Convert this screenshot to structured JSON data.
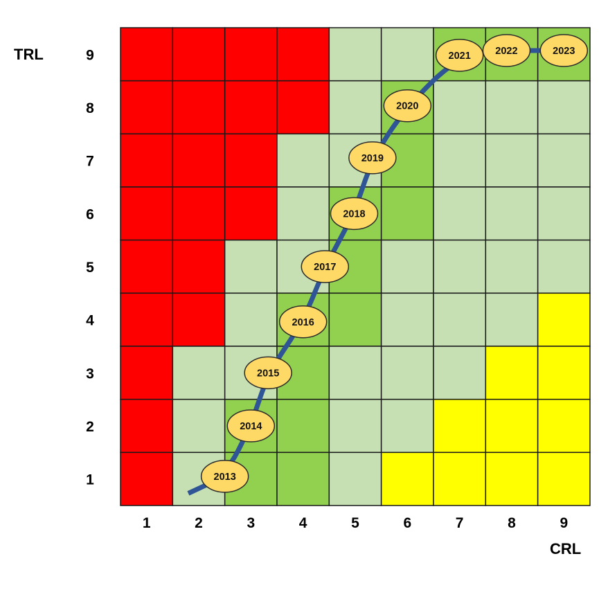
{
  "chart_data": {
    "type": "heatmap",
    "xlabel": "CRL",
    "ylabel": "TRL",
    "x_ticks": [
      "1",
      "2",
      "3",
      "4",
      "5",
      "6",
      "7",
      "8",
      "9"
    ],
    "y_ticks": [
      "1",
      "2",
      "3",
      "4",
      "5",
      "6",
      "7",
      "8",
      "9"
    ],
    "colors": {
      "R": "#ff0000",
      "L": "#c6e0b4",
      "G": "#92d050",
      "Y": "#ffff00",
      "path": "#2f5597",
      "marker": "#ffd966"
    },
    "grid_rows_top_to_bottom": [
      {
        "trl": 9,
        "cells": [
          "R",
          "R",
          "R",
          "R",
          "L",
          "L",
          "G",
          "G",
          "G"
        ]
      },
      {
        "trl": 8,
        "cells": [
          "R",
          "R",
          "R",
          "R",
          "L",
          "G",
          "L",
          "L",
          "L"
        ]
      },
      {
        "trl": 7,
        "cells": [
          "R",
          "R",
          "R",
          "L",
          "L",
          "G",
          "L",
          "L",
          "L"
        ]
      },
      {
        "trl": 6,
        "cells": [
          "R",
          "R",
          "R",
          "L",
          "G",
          "G",
          "L",
          "L",
          "L"
        ]
      },
      {
        "trl": 5,
        "cells": [
          "R",
          "R",
          "L",
          "L",
          "G",
          "L",
          "L",
          "L",
          "L"
        ]
      },
      {
        "trl": 4,
        "cells": [
          "R",
          "R",
          "L",
          "G",
          "G",
          "L",
          "L",
          "L",
          "Y"
        ]
      },
      {
        "trl": 3,
        "cells": [
          "R",
          "L",
          "L",
          "G",
          "L",
          "L",
          "L",
          "Y",
          "Y"
        ]
      },
      {
        "trl": 2,
        "cells": [
          "R",
          "L",
          "G",
          "G",
          "L",
          "L",
          "Y",
          "Y",
          "Y"
        ]
      },
      {
        "trl": 1,
        "cells": [
          "R",
          "L",
          "G",
          "G",
          "L",
          "Y",
          "Y",
          "Y",
          "Y"
        ]
      }
    ],
    "path_start": {
      "crl": 1.8,
      "trl": 0.73
    },
    "milestones": [
      {
        "label": "2013",
        "crl": 2.5,
        "trl": 1.05
      },
      {
        "label": "2014",
        "crl": 3.0,
        "trl": 2.0
      },
      {
        "label": "2015",
        "crl": 3.33,
        "trl": 3.0
      },
      {
        "label": "2016",
        "crl": 4.0,
        "trl": 3.96
      },
      {
        "label": "2017",
        "crl": 4.42,
        "trl": 5.0
      },
      {
        "label": "2018",
        "crl": 4.98,
        "trl": 6.0
      },
      {
        "label": "2019",
        "crl": 5.33,
        "trl": 7.05
      },
      {
        "label": "2020",
        "crl": 6.0,
        "trl": 8.03
      },
      {
        "label": "2021",
        "crl": 7.0,
        "trl": 8.98
      },
      {
        "label": "2022",
        "crl": 7.9,
        "trl": 9.07
      },
      {
        "label": "2023",
        "crl": 9.0,
        "trl": 9.07
      }
    ]
  }
}
